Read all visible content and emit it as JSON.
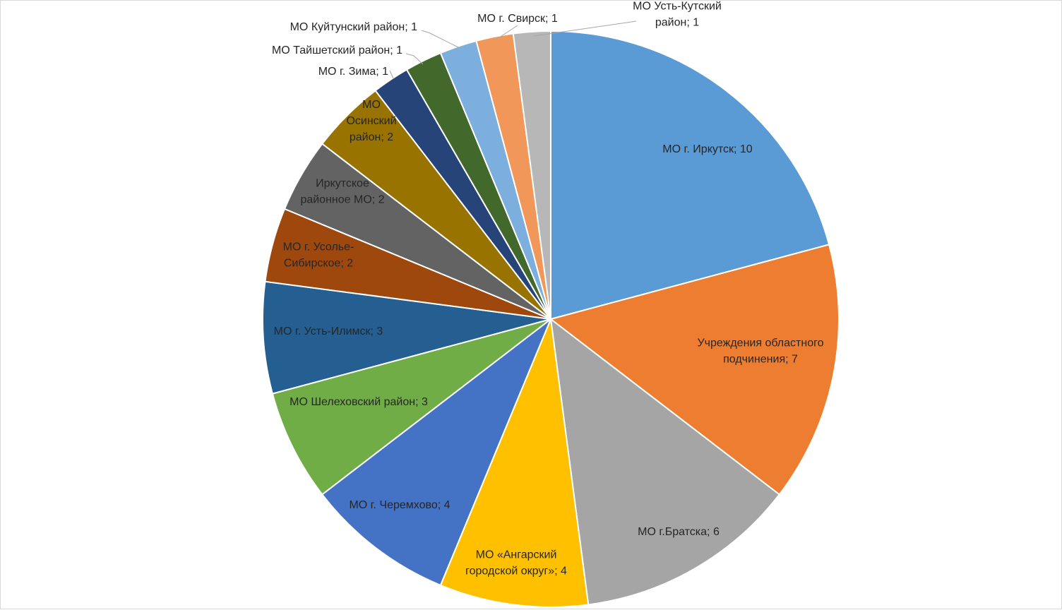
{
  "chart_data": {
    "type": "pie",
    "title": "",
    "slices": [
      {
        "label": "МО г. Иркутск",
        "value": 10,
        "color": "#5B9BD5",
        "text": [
          "МО г. Иркутск; 10"
        ]
      },
      {
        "label": "Учреждения областного подчинения",
        "value": 7,
        "color": "#ED7D31",
        "text": [
          "Учреждения областного",
          "подчинения; 7"
        ]
      },
      {
        "label": "МО г.Братска",
        "value": 6,
        "color": "#A5A5A5",
        "text": [
          "МО г.Братска; 6"
        ]
      },
      {
        "label": "МО «Ангарский городской округ»",
        "value": 4,
        "color": "#FFC000",
        "text": [
          "МО «Ангарский",
          "городской округ»; 4"
        ]
      },
      {
        "label": "МО г. Черемхово",
        "value": 4,
        "color": "#4472C4",
        "text": [
          "МО г. Черемхово; 4"
        ]
      },
      {
        "label": "МО Шелеховский район",
        "value": 3,
        "color": "#70AD47",
        "text": [
          "МО Шелеховский район; 3"
        ]
      },
      {
        "label": "МО г. Усть-Илимск",
        "value": 3,
        "color": "#255E91",
        "text": [
          "МО г. Усть-Илимск; 3"
        ]
      },
      {
        "label": "МО г. Усолье-Сибирское",
        "value": 2,
        "color": "#9E480E",
        "text": [
          "МО г. Усолье-",
          "Сибирское; 2"
        ]
      },
      {
        "label": "Иркутское районное МО",
        "value": 2,
        "color": "#636363",
        "text": [
          "Иркутское",
          "районное МО; 2"
        ]
      },
      {
        "label": "МО Осинский район",
        "value": 2,
        "color": "#997300",
        "text": [
          "МО",
          "Осинский",
          "район; 2"
        ]
      },
      {
        "label": "МО г. Зима",
        "value": 1,
        "color": "#264478",
        "text": [
          "МО г. Зима; 1"
        ]
      },
      {
        "label": "МО Тайшетский район",
        "value": 1,
        "color": "#43682B",
        "text": [
          "МО Тайшетский район; 1"
        ]
      },
      {
        "label": "МО Куйтунский район",
        "value": 1,
        "color": "#7CAFDD",
        "text": [
          "МО Куйтунский район; 1"
        ]
      },
      {
        "label": "МО г. Свирск",
        "value": 1,
        "color": "#F1975A",
        "text": [
          "МО г. Свирск; 1"
        ]
      },
      {
        "label": "МО Усть-Кутский район",
        "value": 1,
        "color": "#B7B7B7",
        "text": [
          "МО Усть-Кутский",
          "район; 1"
        ]
      }
    ]
  }
}
